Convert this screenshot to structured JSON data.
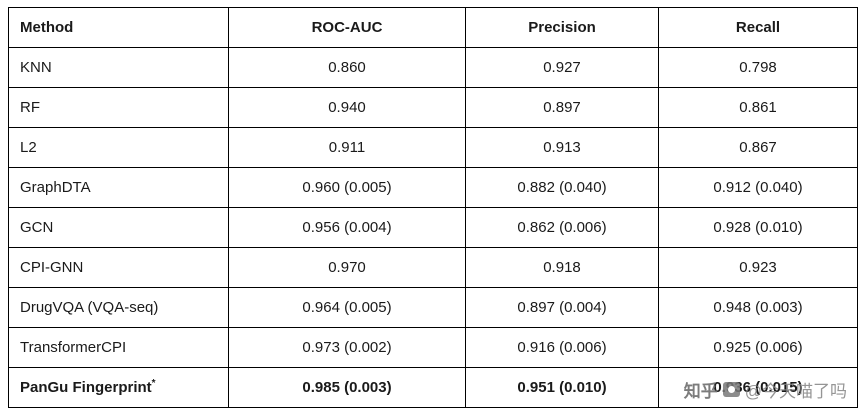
{
  "table": {
    "headers": [
      "Method",
      "ROC-AUC",
      "Precision",
      "Recall"
    ],
    "rows": [
      {
        "method": "KNN",
        "roc_auc": "0.860",
        "precision": "0.927",
        "recall": "0.798"
      },
      {
        "method": "RF",
        "roc_auc": "0.940",
        "precision": "0.897",
        "recall": "0.861"
      },
      {
        "method": "L2",
        "roc_auc": "0.911",
        "precision": "0.913",
        "recall": "0.867"
      },
      {
        "method": "GraphDTA",
        "roc_auc": "0.960 (0.005)",
        "precision": "0.882 (0.040)",
        "recall": "0.912 (0.040)"
      },
      {
        "method": "GCN",
        "roc_auc": "0.956 (0.004)",
        "precision": "0.862 (0.006)",
        "recall": "0.928 (0.010)"
      },
      {
        "method": "CPI-GNN",
        "roc_auc": "0.970",
        "precision": "0.918",
        "recall": "0.923"
      },
      {
        "method": "DrugVQA (VQA-seq)",
        "roc_auc": "0.964 (0.005)",
        "precision": "0.897 (0.004)",
        "recall": "0.948 (0.003)"
      },
      {
        "method": "TransformerCPI",
        "roc_auc": "0.973 (0.002)",
        "precision": "0.916 (0.006)",
        "recall": "0.925 (0.006)"
      },
      {
        "method": "PanGu Fingerprint",
        "method_sup": "*",
        "roc_auc": "0.985 (0.003)",
        "precision": "0.951 (0.010)",
        "recall": "0.936 (0.015)"
      }
    ]
  },
  "watermark": {
    "brand": "知乎",
    "handle": "@今天喵了吗"
  }
}
